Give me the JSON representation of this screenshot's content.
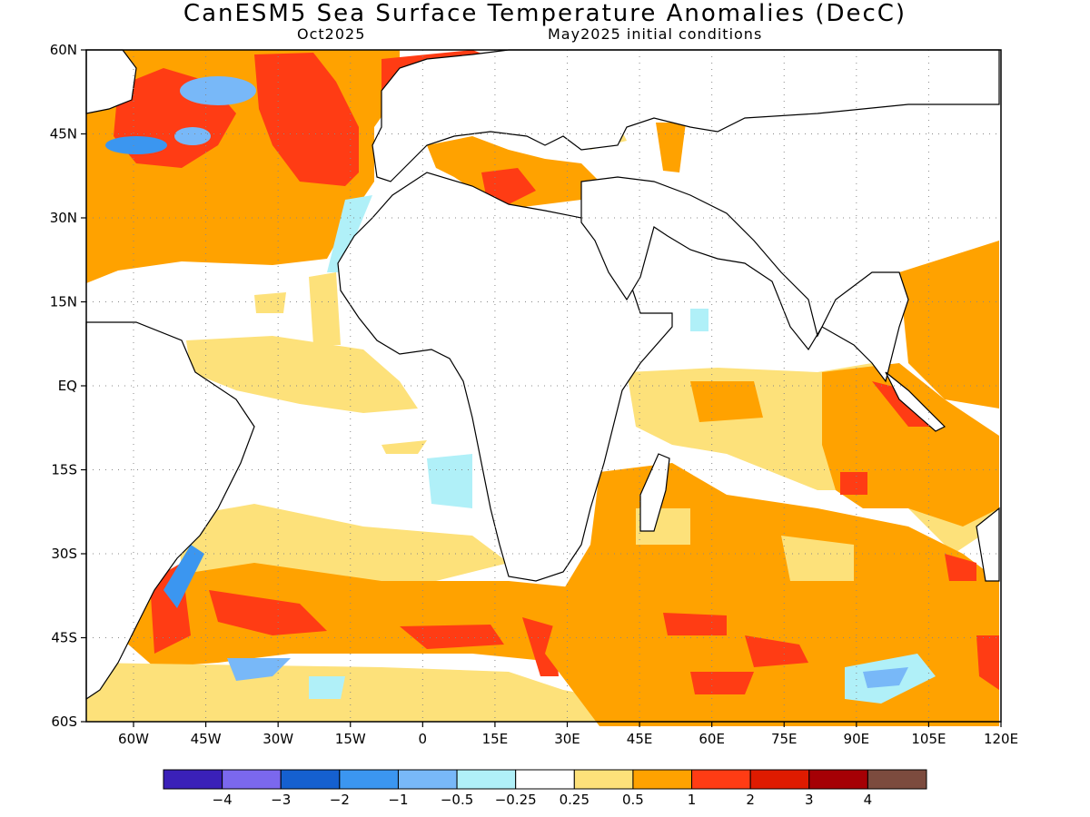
{
  "title": "CanESM5 Sea Surface Temperature Anomalies (DecC)",
  "valid_month": "Oct2025",
  "init_label": "May2025 initial conditions",
  "lat_labels": [
    "60N",
    "45N",
    "30N",
    "15N",
    "EQ",
    "15S",
    "30S",
    "45S",
    "60S"
  ],
  "lon_labels": [
    "60W",
    "45W",
    "30W",
    "15W",
    "0",
    "15E",
    "30E",
    "45E",
    "60E",
    "75E",
    "90E",
    "105E",
    "120E"
  ],
  "colorbar": {
    "colors": [
      "#3a20b8",
      "#7b68ee",
      "#1560d0",
      "#3b96f0",
      "#78b8f8",
      "#b0f0f8",
      "#ffffff",
      "#fde17a",
      "#ffa200",
      "#ff3c14",
      "#df1b00",
      "#a50005",
      "#7c4b3e"
    ],
    "labels": [
      "−4",
      "−3",
      "−2",
      "−1",
      "−0.5",
      "−0.25",
      "0.25",
      "0.5",
      "1",
      "2",
      "3",
      "4"
    ]
  }
}
